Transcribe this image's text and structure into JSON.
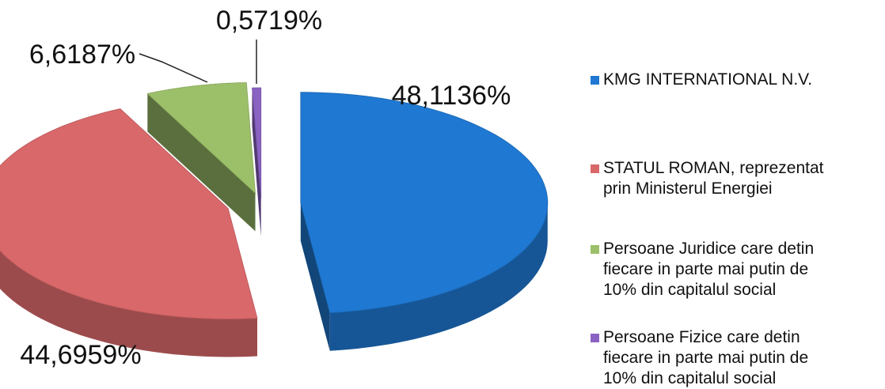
{
  "chart_data": {
    "type": "pie",
    "three_d": true,
    "exploded": true,
    "legend_position": "right",
    "slices": [
      {
        "label": "KMG INTERNATIONAL N.V.",
        "value": 48.1136,
        "value_label": "48,1136%",
        "color": "#1f78d1"
      },
      {
        "label": "STATUL ROMAN, reprezentat\nprin Ministerul Energiei",
        "value": 44.6959,
        "value_label": "44,6959%",
        "color": "#d9686a"
      },
      {
        "label": "Persoane Juridice care detin\nfiecare in parte mai putin de\n10% din capitalul social",
        "value": 6.6187,
        "value_label": "6,6187%",
        "color": "#9cc069"
      },
      {
        "label": "Persoane Fizice care detin\nfiecare in parte mai putin de\n10% din capitalul social",
        "value": 0.5719,
        "value_label": "0,5719%",
        "color": "#8a62c2"
      }
    ]
  }
}
